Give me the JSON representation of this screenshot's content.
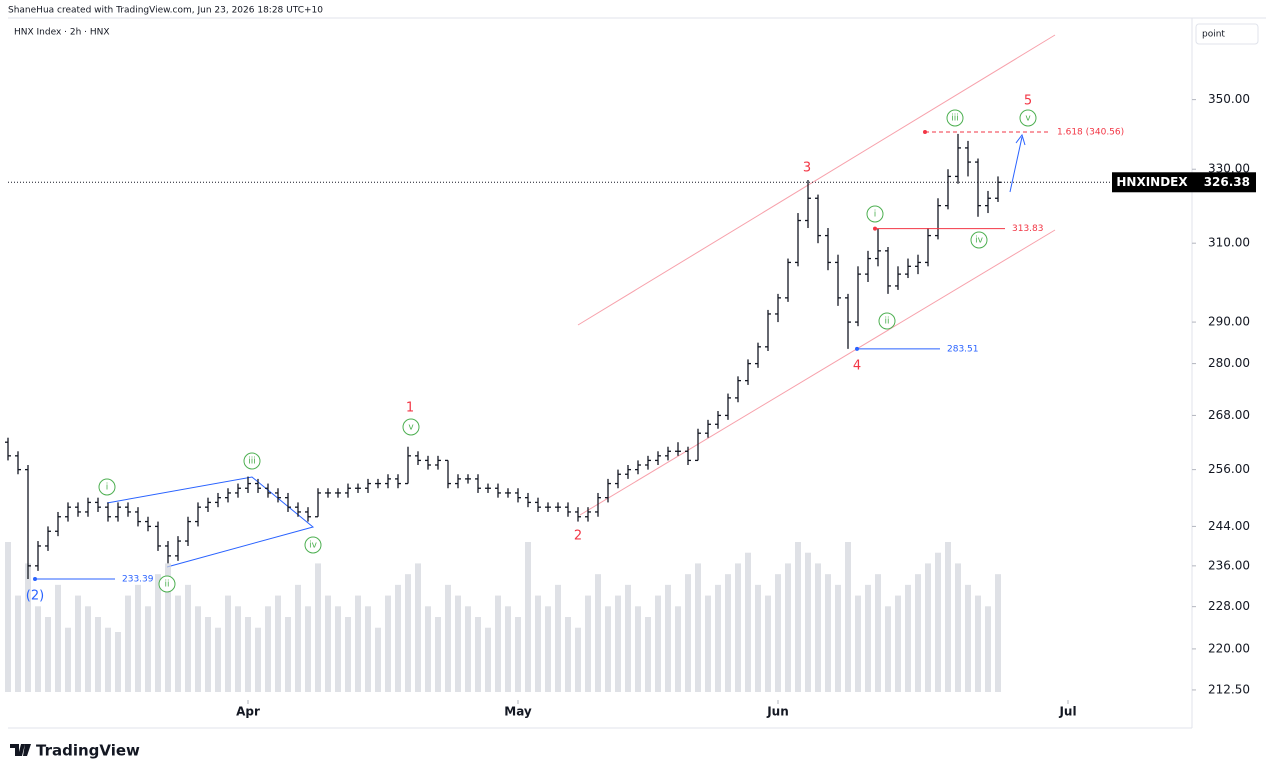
{
  "header": {
    "credit": "ShaneHua created with TradingView.com, Jun 23, 2026 18:28 UTC+10",
    "symbol": "HNX Index · 2h · HNX",
    "scale_mode": "point"
  },
  "footer": {
    "brand": "TradingView"
  },
  "chart_data": {
    "type": "ohlc",
    "x": [
      0,
      1,
      2,
      3,
      4,
      5,
      6,
      7,
      8,
      9,
      10,
      11,
      12,
      13,
      14,
      15,
      16,
      17,
      18,
      19,
      20,
      21,
      22,
      23,
      24,
      25,
      26,
      27,
      28,
      29,
      30,
      31,
      32,
      33,
      34,
      35,
      36,
      37,
      38,
      39,
      40,
      41,
      42,
      43,
      44,
      45,
      46,
      47,
      48,
      49,
      50,
      51,
      52,
      53,
      54,
      55,
      56,
      57,
      58,
      59,
      60,
      61,
      62,
      63,
      64,
      65,
      66,
      67,
      68,
      69,
      70,
      71,
      72,
      73,
      74,
      75,
      76,
      77,
      78,
      79,
      80,
      81,
      82,
      83,
      84,
      85,
      86,
      87,
      88,
      89,
      90,
      91,
      92,
      93,
      94,
      95,
      96,
      97,
      98,
      99
    ],
    "ohlc": [
      [
        262,
        263,
        258,
        259
      ],
      [
        259,
        260,
        255,
        256
      ],
      [
        256,
        257,
        233.39,
        236
      ],
      [
        236,
        241,
        235,
        240
      ],
      [
        240,
        244,
        239,
        243
      ],
      [
        243,
        247,
        242,
        246
      ],
      [
        246,
        249,
        245,
        248
      ],
      [
        248,
        249,
        246,
        247
      ],
      [
        247,
        250,
        246,
        249
      ],
      [
        249,
        250,
        247,
        248
      ],
      [
        248,
        249,
        245,
        246
      ],
      [
        246,
        249,
        245,
        248
      ],
      [
        248,
        249,
        246,
        247
      ],
      [
        247,
        248,
        244,
        245
      ],
      [
        245,
        246,
        243,
        244
      ],
      [
        244,
        245,
        239,
        240
      ],
      [
        240,
        241,
        236.5,
        238
      ],
      [
        238,
        242,
        237,
        241
      ],
      [
        241,
        246,
        240,
        245
      ],
      [
        245,
        249,
        244,
        248
      ],
      [
        248,
        250,
        247,
        249
      ],
      [
        249,
        251,
        248,
        250
      ],
      [
        250,
        252,
        249,
        251
      ],
      [
        251,
        253,
        250,
        252
      ],
      [
        252,
        254.5,
        251,
        253
      ],
      [
        253,
        254,
        251,
        252
      ],
      [
        252,
        253,
        250,
        251
      ],
      [
        251,
        252,
        249,
        250
      ],
      [
        250,
        251,
        247,
        248
      ],
      [
        248,
        249,
        246,
        247
      ],
      [
        247,
        248,
        245,
        246
      ],
      [
        246,
        252,
        246,
        251
      ],
      [
        251,
        252,
        250,
        251
      ],
      [
        251,
        252,
        250,
        251
      ],
      [
        251,
        253,
        250,
        252
      ],
      [
        252,
        253,
        251,
        252
      ],
      [
        252,
        254,
        251,
        253
      ],
      [
        253,
        254,
        252,
        253
      ],
      [
        253,
        255,
        252,
        254
      ],
      [
        254,
        255,
        252,
        253
      ],
      [
        253,
        261,
        253,
        259
      ],
      [
        259,
        260,
        257,
        258
      ],
      [
        258,
        259,
        256,
        257
      ],
      [
        257,
        259,
        256,
        258
      ],
      [
        258,
        258,
        252,
        253
      ],
      [
        253,
        255,
        252,
        254
      ],
      [
        254,
        255,
        253,
        254
      ],
      [
        254,
        255,
        251,
        252
      ],
      [
        252,
        253,
        251,
        252
      ],
      [
        252,
        253,
        250,
        251
      ],
      [
        251,
        252,
        250,
        251
      ],
      [
        251,
        252,
        249,
        250
      ],
      [
        250,
        251,
        248,
        249
      ],
      [
        249,
        250,
        247,
        248
      ],
      [
        248,
        249,
        247,
        248
      ],
      [
        248,
        249,
        247,
        248
      ],
      [
        248,
        249,
        246,
        247
      ],
      [
        247,
        248,
        245,
        246
      ],
      [
        246,
        248,
        245,
        247
      ],
      [
        247,
        251,
        246,
        250
      ],
      [
        250,
        254,
        249,
        253
      ],
      [
        253,
        256,
        252,
        255
      ],
      [
        255,
        257,
        254,
        256
      ],
      [
        256,
        258,
        255,
        257
      ],
      [
        257,
        259,
        256,
        258
      ],
      [
        258,
        260,
        257,
        259
      ],
      [
        259,
        261,
        258,
        260
      ],
      [
        260,
        262,
        259,
        260
      ],
      [
        260,
        261,
        257,
        258
      ],
      [
        258,
        265,
        258,
        264
      ],
      [
        264,
        267,
        263,
        266
      ],
      [
        266,
        269,
        265,
        268
      ],
      [
        268,
        273,
        267,
        272
      ],
      [
        272,
        277,
        271,
        276
      ],
      [
        276,
        281,
        275,
        280
      ],
      [
        280,
        285,
        279,
        284
      ],
      [
        284,
        293,
        283,
        292
      ],
      [
        292,
        297,
        290,
        296
      ],
      [
        296,
        306,
        295,
        305
      ],
      [
        305,
        318,
        304,
        316
      ],
      [
        316,
        327,
        314,
        322
      ],
      [
        322,
        323,
        310,
        312
      ],
      [
        312,
        314,
        303,
        305
      ],
      [
        305,
        307,
        294,
        296
      ],
      [
        296,
        297,
        283.51,
        290
      ],
      [
        290,
        304,
        289,
        302
      ],
      [
        302,
        308,
        300,
        306
      ],
      [
        306,
        313.83,
        304,
        308
      ],
      [
        308,
        309,
        297,
        299
      ],
      [
        299,
        304,
        298,
        302
      ],
      [
        302,
        306,
        301,
        304
      ],
      [
        304,
        307,
        302,
        305
      ],
      [
        305,
        314,
        304,
        312
      ],
      [
        312,
        322,
        311,
        320
      ],
      [
        320,
        330,
        319,
        328
      ],
      [
        328,
        340,
        326,
        336
      ],
      [
        336,
        338,
        328,
        332
      ],
      [
        332,
        333,
        317,
        320
      ],
      [
        320,
        324,
        318,
        322
      ],
      [
        322,
        328,
        321,
        326.38
      ]
    ],
    "volume": [
      70,
      45,
      60,
      40,
      35,
      50,
      30,
      45,
      40,
      35,
      30,
      28,
      45,
      50,
      40,
      55,
      60,
      45,
      50,
      40,
      35,
      30,
      45,
      40,
      35,
      30,
      40,
      45,
      35,
      50,
      40,
      60,
      45,
      40,
      35,
      45,
      40,
      30,
      45,
      50,
      55,
      60,
      40,
      35,
      50,
      45,
      40,
      35,
      30,
      45,
      40,
      35,
      70,
      45,
      40,
      50,
      35,
      30,
      45,
      55,
      40,
      45,
      50,
      40,
      35,
      45,
      50,
      40,
      55,
      60,
      45,
      50,
      55,
      60,
      65,
      50,
      45,
      55,
      60,
      70,
      65,
      60,
      55,
      50,
      70,
      45,
      50,
      55,
      40,
      45,
      50,
      55,
      60,
      65,
      70,
      60,
      50,
      45,
      40,
      55
    ],
    "color": "#131722",
    "volume_color": "#d1d4dc",
    "xlim": [
      0,
      118.2
    ],
    "xticks": [
      {
        "value": 24,
        "label": "Apr"
      },
      {
        "value": 51,
        "label": "May"
      },
      {
        "value": 77,
        "label": "Jun"
      },
      {
        "value": 106,
        "label": "Jul"
      }
    ],
    "ylim": [
      210.7,
      375
    ],
    "log_scale": true,
    "yticks": [
      {
        "value": 212.5,
        "label": "212.50"
      },
      {
        "value": 220,
        "label": "220.00"
      },
      {
        "value": 228,
        "label": "228.00"
      },
      {
        "value": 236,
        "label": "236.00"
      },
      {
        "value": 244,
        "label": "244.00"
      },
      {
        "value": 256,
        "label": "256.00"
      },
      {
        "value": 268,
        "label": "268.00"
      },
      {
        "value": 280,
        "label": "280.00"
      },
      {
        "value": 290,
        "label": "290.00"
      },
      {
        "value": 310,
        "label": "310.00"
      },
      {
        "value": 330,
        "label": "330.00"
      },
      {
        "value": 350,
        "label": "350.00"
      }
    ],
    "last_price": 326.38,
    "price_tag": "HNXINDEX",
    "levels": [
      {
        "value": 233.39,
        "color": "#2962ff"
      },
      {
        "value": 283.51,
        "color": "#2962ff"
      },
      {
        "value": 313.83,
        "color": "#f23645"
      },
      {
        "value": 340.56,
        "label": "1.618 (340.56)",
        "color": "#f23645",
        "dashed": true
      }
    ],
    "annotations": [
      "(2)",
      "1",
      "v",
      "2",
      "3",
      "4",
      "5",
      "i",
      "ii",
      "iii",
      "iv",
      "i",
      "ii",
      "iii",
      "iv",
      "v"
    ]
  }
}
